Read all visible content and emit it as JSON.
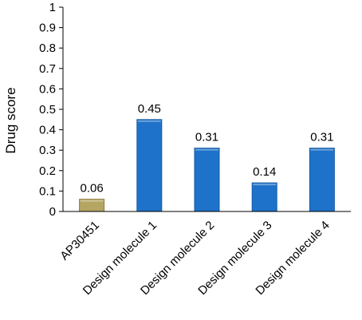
{
  "chart_data": {
    "type": "bar",
    "title": "",
    "xlabel": "",
    "ylabel": "Drug score",
    "ylim": [
      0,
      1
    ],
    "yticks": [
      "0",
      "0.1",
      "0.2",
      "0.3",
      "0.4",
      "0.5",
      "0.6",
      "0.7",
      "0.8",
      "0.9",
      "1"
    ],
    "categories": [
      "AP30451",
      "Design  molecule 1",
      "Design  molecule 2",
      "Design  molecule 3",
      "Design  molecule  4"
    ],
    "values": [
      0.06,
      0.45,
      0.31,
      0.14,
      0.31
    ],
    "data_labels": [
      "0.06",
      "0.45",
      "0.31",
      "0.14",
      "0.31"
    ],
    "colors": [
      "#b5a562",
      "#1f72c9",
      "#1f72c9",
      "#1f72c9",
      "#1f72c9"
    ],
    "grid": false,
    "legend": "none"
  }
}
